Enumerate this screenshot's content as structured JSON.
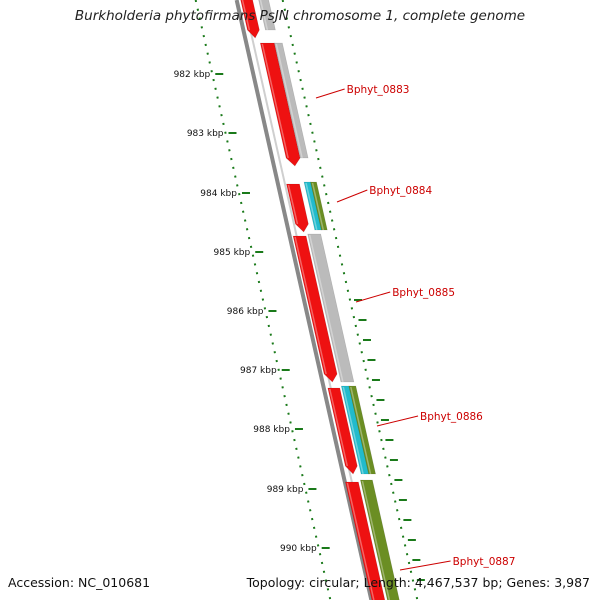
{
  "title": "Burkholderia phytofirmans PsJN chromosome 1, complete genome",
  "accession": "Accession: NC_010681",
  "summary": "Topology: circular; Length: 4,467,537 bp; Genes: 3,987",
  "colors": {
    "cds": "#ee1111",
    "gene": "#bbbbbb",
    "rna": "#22bbcc",
    "feature": "#6b8e23",
    "axis": "#1a7a1a",
    "label": "#cc0000",
    "backbone": "#888888"
  },
  "ticks": [
    "982 kbp",
    "983 kbp",
    "984 kbp",
    "985 kbp",
    "986 kbp",
    "987 kbp",
    "988 kbp",
    "989 kbp",
    "990 kbp"
  ],
  "genes": [
    "Bphyt_0883",
    "Bphyt_0884",
    "Bphyt_0885",
    "Bphyt_0886",
    "Bphyt_0887"
  ]
}
